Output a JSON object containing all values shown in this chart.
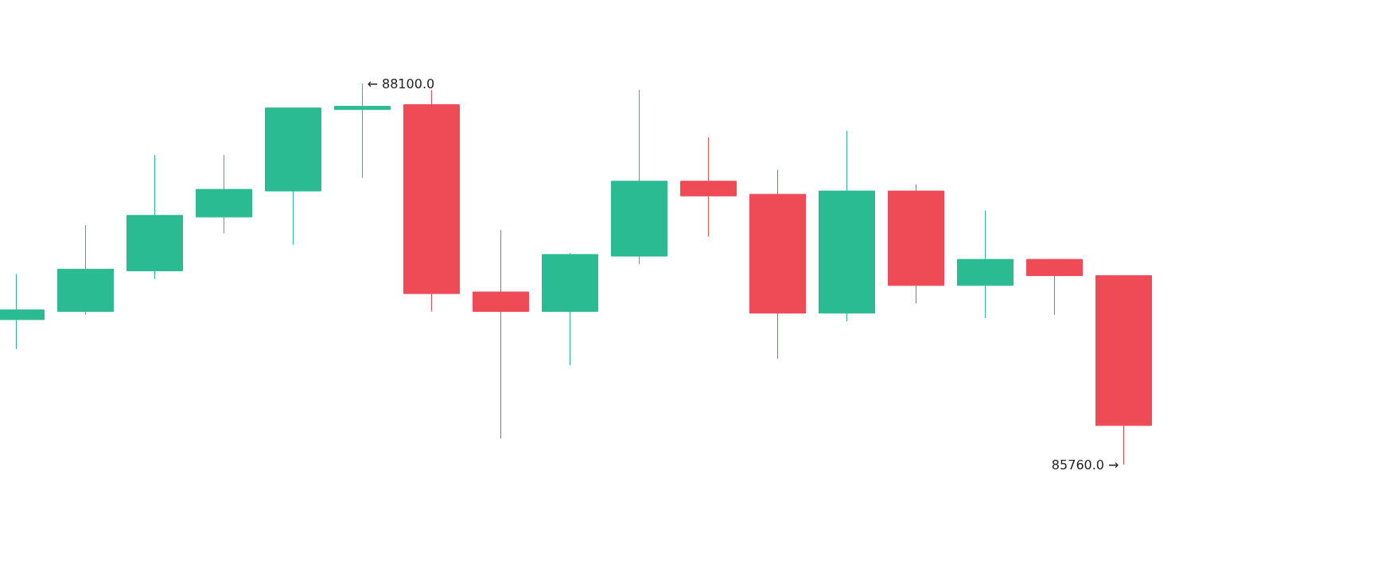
{
  "chart_data": {
    "type": "candlestick",
    "categories": [
      null,
      null,
      null,
      null,
      null,
      null,
      null,
      null,
      null,
      null,
      null,
      null,
      null,
      null,
      null,
      null,
      null
    ],
    "ohlc": [
      [
        86650,
        86930,
        86470,
        86710
      ],
      [
        86700,
        87230,
        86680,
        86960
      ],
      [
        86950,
        87660,
        86900,
        87290
      ],
      [
        87280,
        87660,
        87180,
        87450
      ],
      [
        87440,
        87950,
        87110,
        87950
      ],
      [
        87940,
        88100,
        87520,
        87960
      ],
      [
        87970,
        88060,
        86700,
        86810
      ],
      [
        86820,
        87200,
        85920,
        86700
      ],
      [
        86700,
        87060,
        86370,
        87050
      ],
      [
        87040,
        88060,
        86990,
        87500
      ],
      [
        87500,
        87770,
        87160,
        87410
      ],
      [
        87420,
        87570,
        86410,
        86690
      ],
      [
        86690,
        87810,
        86640,
        87440
      ],
      [
        87440,
        87480,
        86750,
        86860
      ],
      [
        86860,
        87320,
        86660,
        87020
      ],
      [
        87020,
        87020,
        86680,
        86920
      ],
      [
        86920,
        86920,
        85760,
        86000
      ]
    ],
    "colors": [
      "#2bbb92",
      "#2bbb92",
      "#2bbb92",
      "#2bbb92",
      "#2bbb92",
      "#2bbb92",
      "#ef4b57",
      "#ef4b57",
      "#2bbb92",
      "#2bbb92",
      "#ef4b57",
      "#ef4b57",
      "#2bbb92",
      "#ef4b57",
      "#2bbb92",
      "#ef4b57",
      "#ef4b57"
    ],
    "annotations": [
      "← 88100.0",
      "85760.0 →"
    ],
    "tick_labels": false
  }
}
